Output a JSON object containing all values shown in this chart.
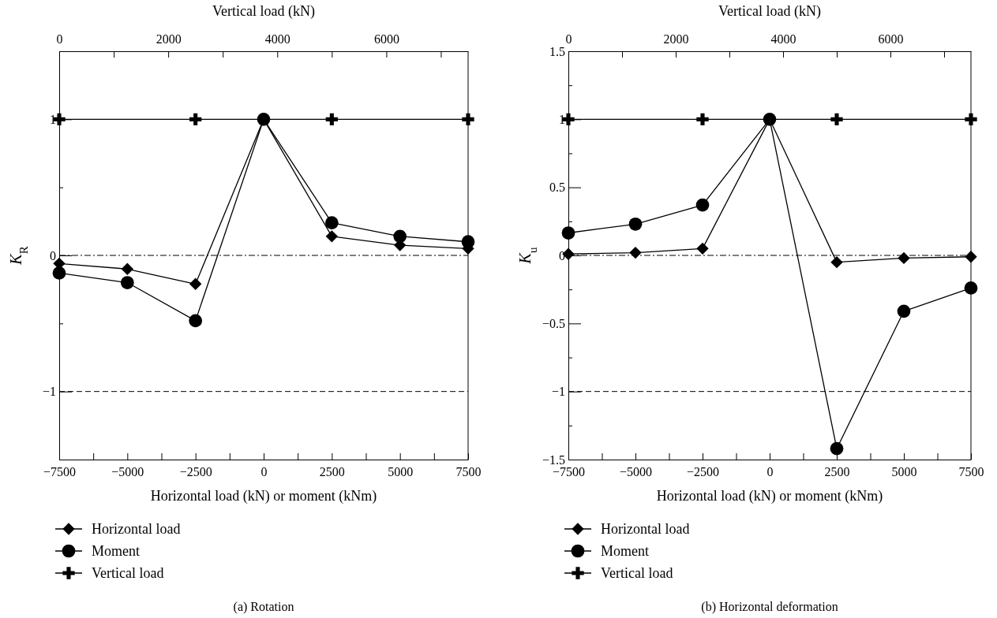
{
  "chart_data": [
    {
      "type": "line",
      "title": "(a)  Rotation",
      "xlabel": "Horizontal load (kN) or moment (kNm)",
      "x2label": "Vertical load (kN)",
      "ylabel": "K$_{R}$",
      "xlim": [
        -7500,
        7500
      ],
      "xticks": [
        {
          "value": -7500,
          "label": "−7500"
        },
        {
          "value": -6250,
          "label": null
        },
        {
          "value": -5000,
          "label": "−5000"
        },
        {
          "value": -3750,
          "label": null
        },
        {
          "value": -2500,
          "label": "−2500"
        },
        {
          "value": -1250,
          "label": null
        },
        0,
        {
          "value": 1250,
          "label": null
        },
        2500,
        {
          "value": 3750,
          "label": null
        },
        5000,
        {
          "value": 6250,
          "label": null
        },
        7500
      ],
      "x2lim": [
        0,
        7500
      ],
      "x2ticks": [
        0,
        {
          "value": 1000,
          "label": null
        },
        2000,
        {
          "value": 3000,
          "label": null
        },
        4000,
        {
          "value": 5000,
          "label": null
        },
        6000,
        {
          "value": 7000,
          "label": null
        }
      ],
      "ylim": [
        -1.5,
        1.5
      ],
      "yticks": [
        {
          "value": -1.5,
          "label": null
        },
        {
          "value": -1,
          "label": "−1"
        },
        {
          "value": -0.5,
          "label": null
        },
        0,
        {
          "value": 0.5,
          "label": null
        },
        1,
        {
          "value": 1.5,
          "label": null
        }
      ],
      "grid": false,
      "legend": "bottom left",
      "line_style": "solid",
      "ref_lines": [
        {
          "axis": "y",
          "value": 0,
          "line_style": "dashdot"
        },
        {
          "axis": "y",
          "value": -1,
          "line_style": "dashed"
        }
      ],
      "series": [
        {
          "name": "Horizontal load",
          "color": "#000000",
          "marker": "diamond",
          "x": [
            -7500,
            -5000,
            -2500,
            0,
            2500,
            5000,
            7500
          ],
          "values": [
            -0.06,
            -0.1,
            -0.21,
            1,
            0.14,
            0.075,
            0.05
          ]
        },
        {
          "name": "Moment",
          "color": "#000000",
          "marker": "circle",
          "x": [
            -7500,
            -5000,
            -2500,
            0,
            2500,
            5000,
            7500
          ],
          "values": [
            -0.13,
            -0.2,
            -0.48,
            1,
            0.24,
            0.14,
            0.1
          ]
        },
        {
          "name": "Vertical load",
          "color": "#000000",
          "marker": "cross",
          "axis": "x2",
          "x": [
            0,
            2500,
            5000,
            7500
          ],
          "values": [
            1,
            1,
            1,
            1
          ]
        }
      ]
    },
    {
      "type": "line",
      "title": "(b)  Horizontal deformation",
      "xlabel": "Horizontal load (kN) or moment (kNm)",
      "x2label": "Vertical load (kN)",
      "ylabel": "K$_{u}$",
      "xlim": [
        -7500,
        7500
      ],
      "xticks": [
        {
          "value": -7500,
          "label": "−7500"
        },
        {
          "value": -6250,
          "label": null
        },
        {
          "value": -5000,
          "label": "−5000"
        },
        {
          "value": -3750,
          "label": null
        },
        {
          "value": -2500,
          "label": "−2500"
        },
        {
          "value": -1250,
          "label": null
        },
        0,
        {
          "value": 1250,
          "label": null
        },
        2500,
        {
          "value": 3750,
          "label": null
        },
        5000,
        {
          "value": 6250,
          "label": null
        },
        7500
      ],
      "x2lim": [
        0,
        7500
      ],
      "x2ticks": [
        0,
        {
          "value": 1000,
          "label": null
        },
        2000,
        {
          "value": 3000,
          "label": null
        },
        4000,
        {
          "value": 5000,
          "label": null
        },
        6000,
        {
          "value": 7000,
          "label": null
        }
      ],
      "ylim": [
        -1.5,
        1.5
      ],
      "yticks": [
        {
          "value": -1.5,
          "label": "−1.5"
        },
        {
          "value": -1.25,
          "label": null
        },
        {
          "value": -1,
          "label": "−1"
        },
        {
          "value": -0.75,
          "label": null
        },
        {
          "value": -0.5,
          "label": "−0.5"
        },
        {
          "value": -0.25,
          "label": null
        },
        0,
        {
          "value": 0.25,
          "label": null
        },
        0.5,
        {
          "value": 0.75,
          "label": null
        },
        1,
        {
          "value": 1.25,
          "label": null
        },
        1.5
      ],
      "grid": false,
      "legend": "bottom left",
      "line_style": "solid",
      "ref_lines": [
        {
          "axis": "y",
          "value": 0,
          "line_style": "dashdot"
        },
        {
          "axis": "y",
          "value": -1,
          "line_style": "dashed"
        }
      ],
      "series": [
        {
          "name": "Horizontal load",
          "color": "#000000",
          "marker": "diamond",
          "x": [
            -7500,
            -5000,
            -2500,
            0,
            2500,
            5000,
            7500
          ],
          "values": [
            0.01,
            0.02,
            0.05,
            1,
            -0.05,
            -0.02,
            -0.01
          ]
        },
        {
          "name": "Moment",
          "color": "#000000",
          "marker": "circle",
          "x": [
            -7500,
            -5000,
            -2500,
            0,
            2500,
            5000,
            7500
          ],
          "values": [
            0.165,
            0.23,
            0.37,
            1,
            -1.42,
            -0.41,
            -0.24
          ]
        },
        {
          "name": "Vertical load",
          "color": "#000000",
          "marker": "cross",
          "axis": "x2",
          "x": [
            0,
            2500,
            5000,
            7500
          ],
          "values": [
            1,
            1,
            1,
            1
          ]
        }
      ]
    }
  ]
}
